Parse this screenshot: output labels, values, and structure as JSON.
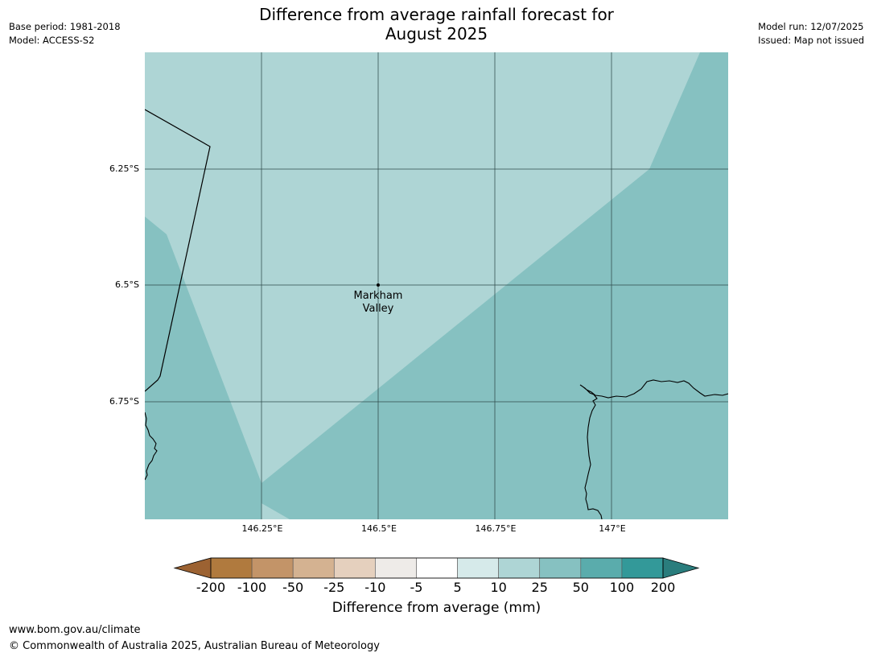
{
  "title": {
    "line1": "Difference from average rainfall forecast for",
    "line2": "August 2025"
  },
  "meta_left": {
    "base_period": "Base period: 1981-2018",
    "model": "Model: ACCESS-S2"
  },
  "meta_right": {
    "model_run": "Model run: 12/07/2025",
    "issued": "Issued: Map not issued"
  },
  "map": {
    "lat_ticks": [
      "6.25°S",
      "6.5°S",
      "6.75°S"
    ],
    "lon_ticks": [
      "146.25°E",
      "146.5°E",
      "146.75°E",
      "147°E"
    ],
    "place_label": {
      "line1": "Markham",
      "line2": "Valley"
    },
    "fill_colors": {
      "10_to_25": "#aed5d5",
      "25_to_50": "#86c1c1"
    }
  },
  "colorbar": {
    "title": "Difference from average (mm)",
    "labels": [
      "-200",
      "-100",
      "-50",
      "-25",
      "-10",
      "-5",
      "5",
      "10",
      "25",
      "50",
      "100",
      "200"
    ],
    "colors": [
      "#9c6232",
      "#b07a3e",
      "#c39468",
      "#d4b291",
      "#e5d0be",
      "#eeebe8",
      "#ffffff",
      "#d6eaea",
      "#aed5d5",
      "#86c1c1",
      "#5aacac",
      "#339999",
      "#2a7d7d"
    ]
  },
  "footer": {
    "url": "www.bom.gov.au/climate",
    "copyright": "© Commonwealth of Australia 2025, Australian Bureau of Meteorology"
  }
}
